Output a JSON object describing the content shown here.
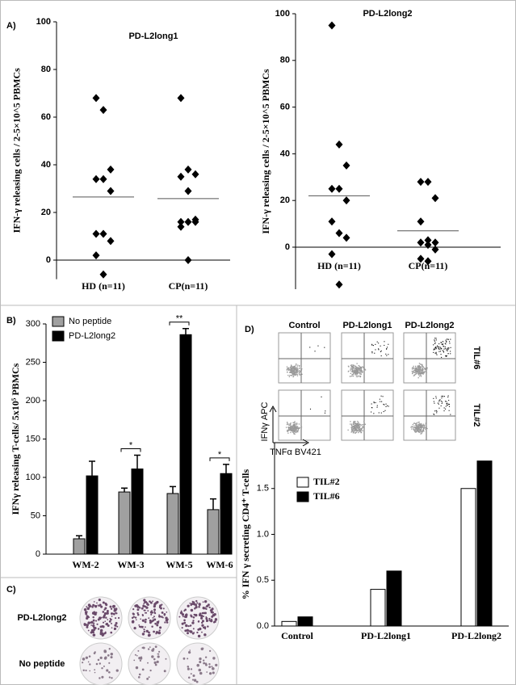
{
  "chart_data": [
    {
      "type": "dot",
      "panel": "A)",
      "title": "PD-L2long1",
      "y_label": "IFN-γ releasing cells / 2-5×10^5 PBMCs",
      "categories": [
        "HD (n=11)",
        "CP(n=11)"
      ],
      "values": [
        [
          68,
          63,
          38,
          34,
          34,
          29,
          11,
          11,
          8,
          2,
          -6
        ],
        [
          68,
          38,
          36,
          35,
          29,
          17,
          16,
          16,
          16,
          14,
          0
        ]
      ],
      "means": [
        26.5,
        25.8
      ],
      "color": "#000000",
      "ylim": [
        -8,
        100
      ],
      "yticks": [
        0,
        20,
        40,
        60,
        80,
        100
      ]
    },
    {
      "type": "dot",
      "title": "PD-L2long2",
      "y_label": "IFN-γ releasing cells / 2-5×10^5 PBMCs",
      "categories": [
        "HD (n=11)",
        "CP(n=11)"
      ],
      "values": [
        [
          95,
          44,
          35,
          25,
          25,
          20,
          11,
          6,
          4,
          -3,
          -16
        ],
        [
          28,
          28,
          21,
          11,
          3,
          2,
          2,
          1,
          -1,
          -5,
          -6
        ]
      ],
      "means": [
        22,
        7
      ],
      "color": "#000000",
      "ylim": [
        -18,
        100
      ],
      "yticks": [
        0,
        20,
        40,
        60,
        80,
        100
      ]
    },
    {
      "type": "bar",
      "panel": "B)",
      "y_label": "IFNγ releasing T-cells/ 5x10⁵ PBMCs",
      "categories": [
        "WM-2",
        "WM-3",
        "WM-5",
        "WM-6"
      ],
      "series": [
        {
          "name": "No peptide",
          "color": "#a0a0a0",
          "values": [
            20,
            81,
            79,
            58
          ],
          "errors": [
            4,
            5,
            9,
            14
          ]
        },
        {
          "name": "PD-L2long2",
          "color": "#000000",
          "values": [
            102,
            111,
            286,
            105
          ],
          "errors": [
            19,
            18,
            8,
            12
          ]
        }
      ],
      "significance": [
        null,
        "*",
        "**",
        "*"
      ],
      "ylim": [
        0,
        300
      ],
      "yticks": [
        0,
        50,
        100,
        150,
        200,
        250,
        300
      ]
    },
    {
      "type": "bar",
      "y_label": "% IFN γ secreting CD4⁺ T-cells",
      "categories": [
        "Control",
        "PD-L2long1",
        "PD-L2long2"
      ],
      "series": [
        {
          "name": "TIL#2",
          "color": "#ffffff",
          "values": [
            0.05,
            0.4,
            1.5
          ]
        },
        {
          "name": "TIL#6",
          "color": "#000000",
          "values": [
            0.1,
            0.6,
            1.8
          ]
        }
      ],
      "ylim": [
        0,
        2.0
      ],
      "yticks": [
        {
          "value": 0,
          "label": "0.0"
        },
        {
          "value": 0.5,
          "label": "0.5"
        },
        {
          "value": 1,
          "label": "1.0"
        },
        {
          "value": 1.5,
          "label": "1.5"
        }
      ]
    }
  ],
  "panel_c": {
    "panel": "C)",
    "rows": [
      "PD-L2long2",
      "No peptide"
    ]
  },
  "flow": {
    "panel": "D)",
    "columns": [
      "Control",
      "PD-L2long1",
      "PD-L2long2"
    ],
    "rows": [
      "TIL#6",
      "TIL#2"
    ],
    "y_label": "IFNγ APC",
    "x_label": "TNFα BV421"
  }
}
